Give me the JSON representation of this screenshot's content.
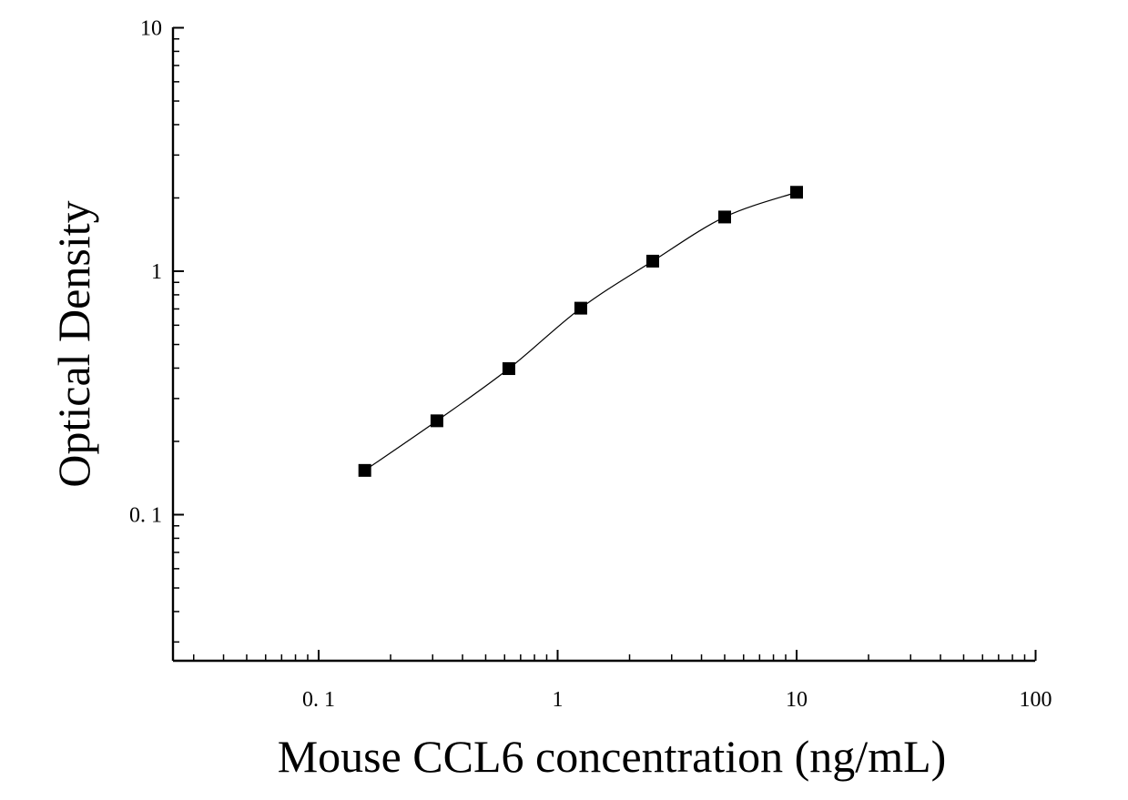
{
  "chart_data": {
    "type": "scatter",
    "title": "",
    "xlabel": "Mouse CCL6 concentration (ng/mL)",
    "ylabel": "Optical Density",
    "x_scale": "log",
    "y_scale": "log",
    "xlim": [
      0.03,
      100
    ],
    "ylim": [
      0.025,
      10
    ],
    "x_ticks": [
      {
        "value": 0.1,
        "label": "0. 1"
      },
      {
        "value": 1,
        "label": "1"
      },
      {
        "value": 10,
        "label": "10"
      },
      {
        "value": 100,
        "label": "100"
      }
    ],
    "y_ticks": [
      {
        "value": 0.1,
        "label": "0. 1"
      },
      {
        "value": 1,
        "label": "1"
      },
      {
        "value": 10,
        "label": "10"
      }
    ],
    "grid": false,
    "legend": "none",
    "series": [
      {
        "marker": "square",
        "color": "#000000",
        "points": [
          {
            "x": 0.156,
            "y": 0.152
          },
          {
            "x": 0.3125,
            "y": 0.243
          },
          {
            "x": 0.625,
            "y": 0.398
          },
          {
            "x": 1.25,
            "y": 0.705
          },
          {
            "x": 2.5,
            "y": 1.1
          },
          {
            "x": 5,
            "y": 1.67
          },
          {
            "x": 10,
            "y": 2.11
          }
        ],
        "fit": "smooth curve through points"
      }
    ]
  }
}
